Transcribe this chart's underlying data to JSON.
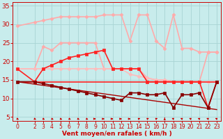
{
  "background_color": "#c8ecec",
  "grid_color": "#a8d4d4",
  "xlabel": "Vent moyen/en rafales ( km/h )",
  "xlabel_color": "#cc0000",
  "tick_color": "#cc0000",
  "xlim": [
    -0.5,
    23.5
  ],
  "ylim": [
    4,
    36
  ],
  "yticks": [
    5,
    10,
    15,
    20,
    25,
    30,
    35
  ],
  "xticks": [
    0,
    2,
    3,
    4,
    5,
    6,
    7,
    8,
    9,
    10,
    11,
    12,
    13,
    14,
    15,
    16,
    17,
    18,
    19,
    20,
    21,
    22,
    23
  ],
  "lines": [
    {
      "x": [
        0,
        2,
        3,
        4,
        5,
        6,
        7,
        8,
        9,
        10,
        11,
        12,
        13,
        14,
        15,
        16,
        17,
        18,
        19,
        20,
        21,
        22,
        23
      ],
      "y": [
        29.5,
        30.5,
        31.0,
        31.5,
        32.0,
        32.0,
        32.0,
        32.0,
        32.0,
        32.5,
        32.5,
        32.5,
        25.5,
        32.5,
        32.5,
        25.5,
        23.5,
        32.5,
        23.5,
        23.5,
        22.5,
        22.5,
        22.5
      ],
      "color": "#ffaaaa",
      "lw": 1.2,
      "marker": "D",
      "ms": 2.5,
      "zorder": 2
    },
    {
      "x": [
        0,
        2,
        3,
        4,
        5,
        6,
        7,
        8,
        9,
        10,
        11,
        12,
        13,
        14,
        15,
        16,
        17,
        18,
        19,
        20,
        21,
        22,
        23
      ],
      "y": [
        18.0,
        18.0,
        24.0,
        23.0,
        25.0,
        25.0,
        25.0,
        25.0,
        25.0,
        18.0,
        18.0,
        18.0,
        18.0,
        18.0,
        15.5,
        15.0,
        15.0,
        14.5,
        14.5,
        14.5,
        14.5,
        22.5,
        22.5
      ],
      "color": "#ffaaaa",
      "lw": 1.2,
      "marker": "D",
      "ms": 2.5,
      "zorder": 2
    },
    {
      "x": [
        0,
        2,
        3,
        4,
        5,
        6,
        7,
        8,
        9,
        10,
        11,
        12,
        13,
        14,
        15,
        16,
        17,
        18,
        19,
        20,
        21,
        22,
        23
      ],
      "y": [
        18.0,
        18.0,
        18.0,
        18.0,
        18.0,
        18.0,
        18.0,
        18.0,
        18.0,
        18.0,
        18.0,
        18.0,
        16.5,
        16.0,
        15.5,
        15.0,
        15.0,
        14.5,
        14.5,
        14.5,
        14.5,
        14.5,
        14.5
      ],
      "color": "#ffbbbb",
      "lw": 1.2,
      "marker": "D",
      "ms": 2.5,
      "zorder": 2
    },
    {
      "x": [
        0,
        2,
        3,
        4,
        5,
        6,
        7,
        8,
        9,
        10,
        11,
        12,
        13,
        14,
        15,
        16,
        17,
        18,
        19,
        20,
        21,
        22,
        23
      ],
      "y": [
        18.0,
        14.5,
        18.0,
        19.0,
        20.0,
        21.0,
        21.5,
        22.0,
        22.5,
        23.0,
        18.0,
        18.0,
        18.0,
        18.0,
        14.5,
        14.5,
        14.5,
        14.5,
        14.5,
        14.5,
        14.5,
        7.5,
        14.5
      ],
      "color": "#ff2222",
      "lw": 1.2,
      "marker": "s",
      "ms": 2.5,
      "zorder": 3
    },
    {
      "x": [
        0,
        23
      ],
      "y": [
        14.5,
        14.5
      ],
      "color": "#ff2222",
      "lw": 1.2,
      "marker": null,
      "ms": 0,
      "zorder": 2
    },
    {
      "x": [
        0,
        2,
        3,
        4,
        5,
        6,
        7,
        8,
        9,
        10,
        11,
        12,
        13,
        14,
        15,
        16,
        17,
        18,
        19,
        20,
        21,
        22,
        23
      ],
      "y": [
        14.5,
        14.5,
        14.0,
        13.5,
        13.0,
        12.5,
        12.0,
        11.5,
        11.0,
        10.5,
        10.0,
        9.5,
        11.5,
        11.5,
        11.0,
        11.0,
        11.5,
        7.5,
        11.0,
        11.0,
        11.5,
        7.5,
        14.5
      ],
      "color": "#880000",
      "lw": 1.2,
      "marker": "s",
      "ms": 2.5,
      "zorder": 3
    },
    {
      "x": [
        0,
        23
      ],
      "y": [
        14.5,
        7.0
      ],
      "color": "#aa0000",
      "lw": 1.0,
      "marker": null,
      "ms": 0,
      "zorder": 2
    }
  ],
  "wind_dirs": [
    225,
    225,
    225,
    225,
    225,
    225,
    225,
    225,
    270,
    270,
    270,
    270,
    270,
    315,
    315,
    315,
    0,
    45,
    45,
    45,
    45,
    45,
    45
  ],
  "wind_x": [
    0,
    2,
    3,
    4,
    5,
    6,
    7,
    8,
    9,
    10,
    11,
    12,
    13,
    14,
    15,
    16,
    17,
    18,
    19,
    20,
    21,
    22,
    23
  ],
  "wind_y": 4.5,
  "wind_color": "#cc0000"
}
